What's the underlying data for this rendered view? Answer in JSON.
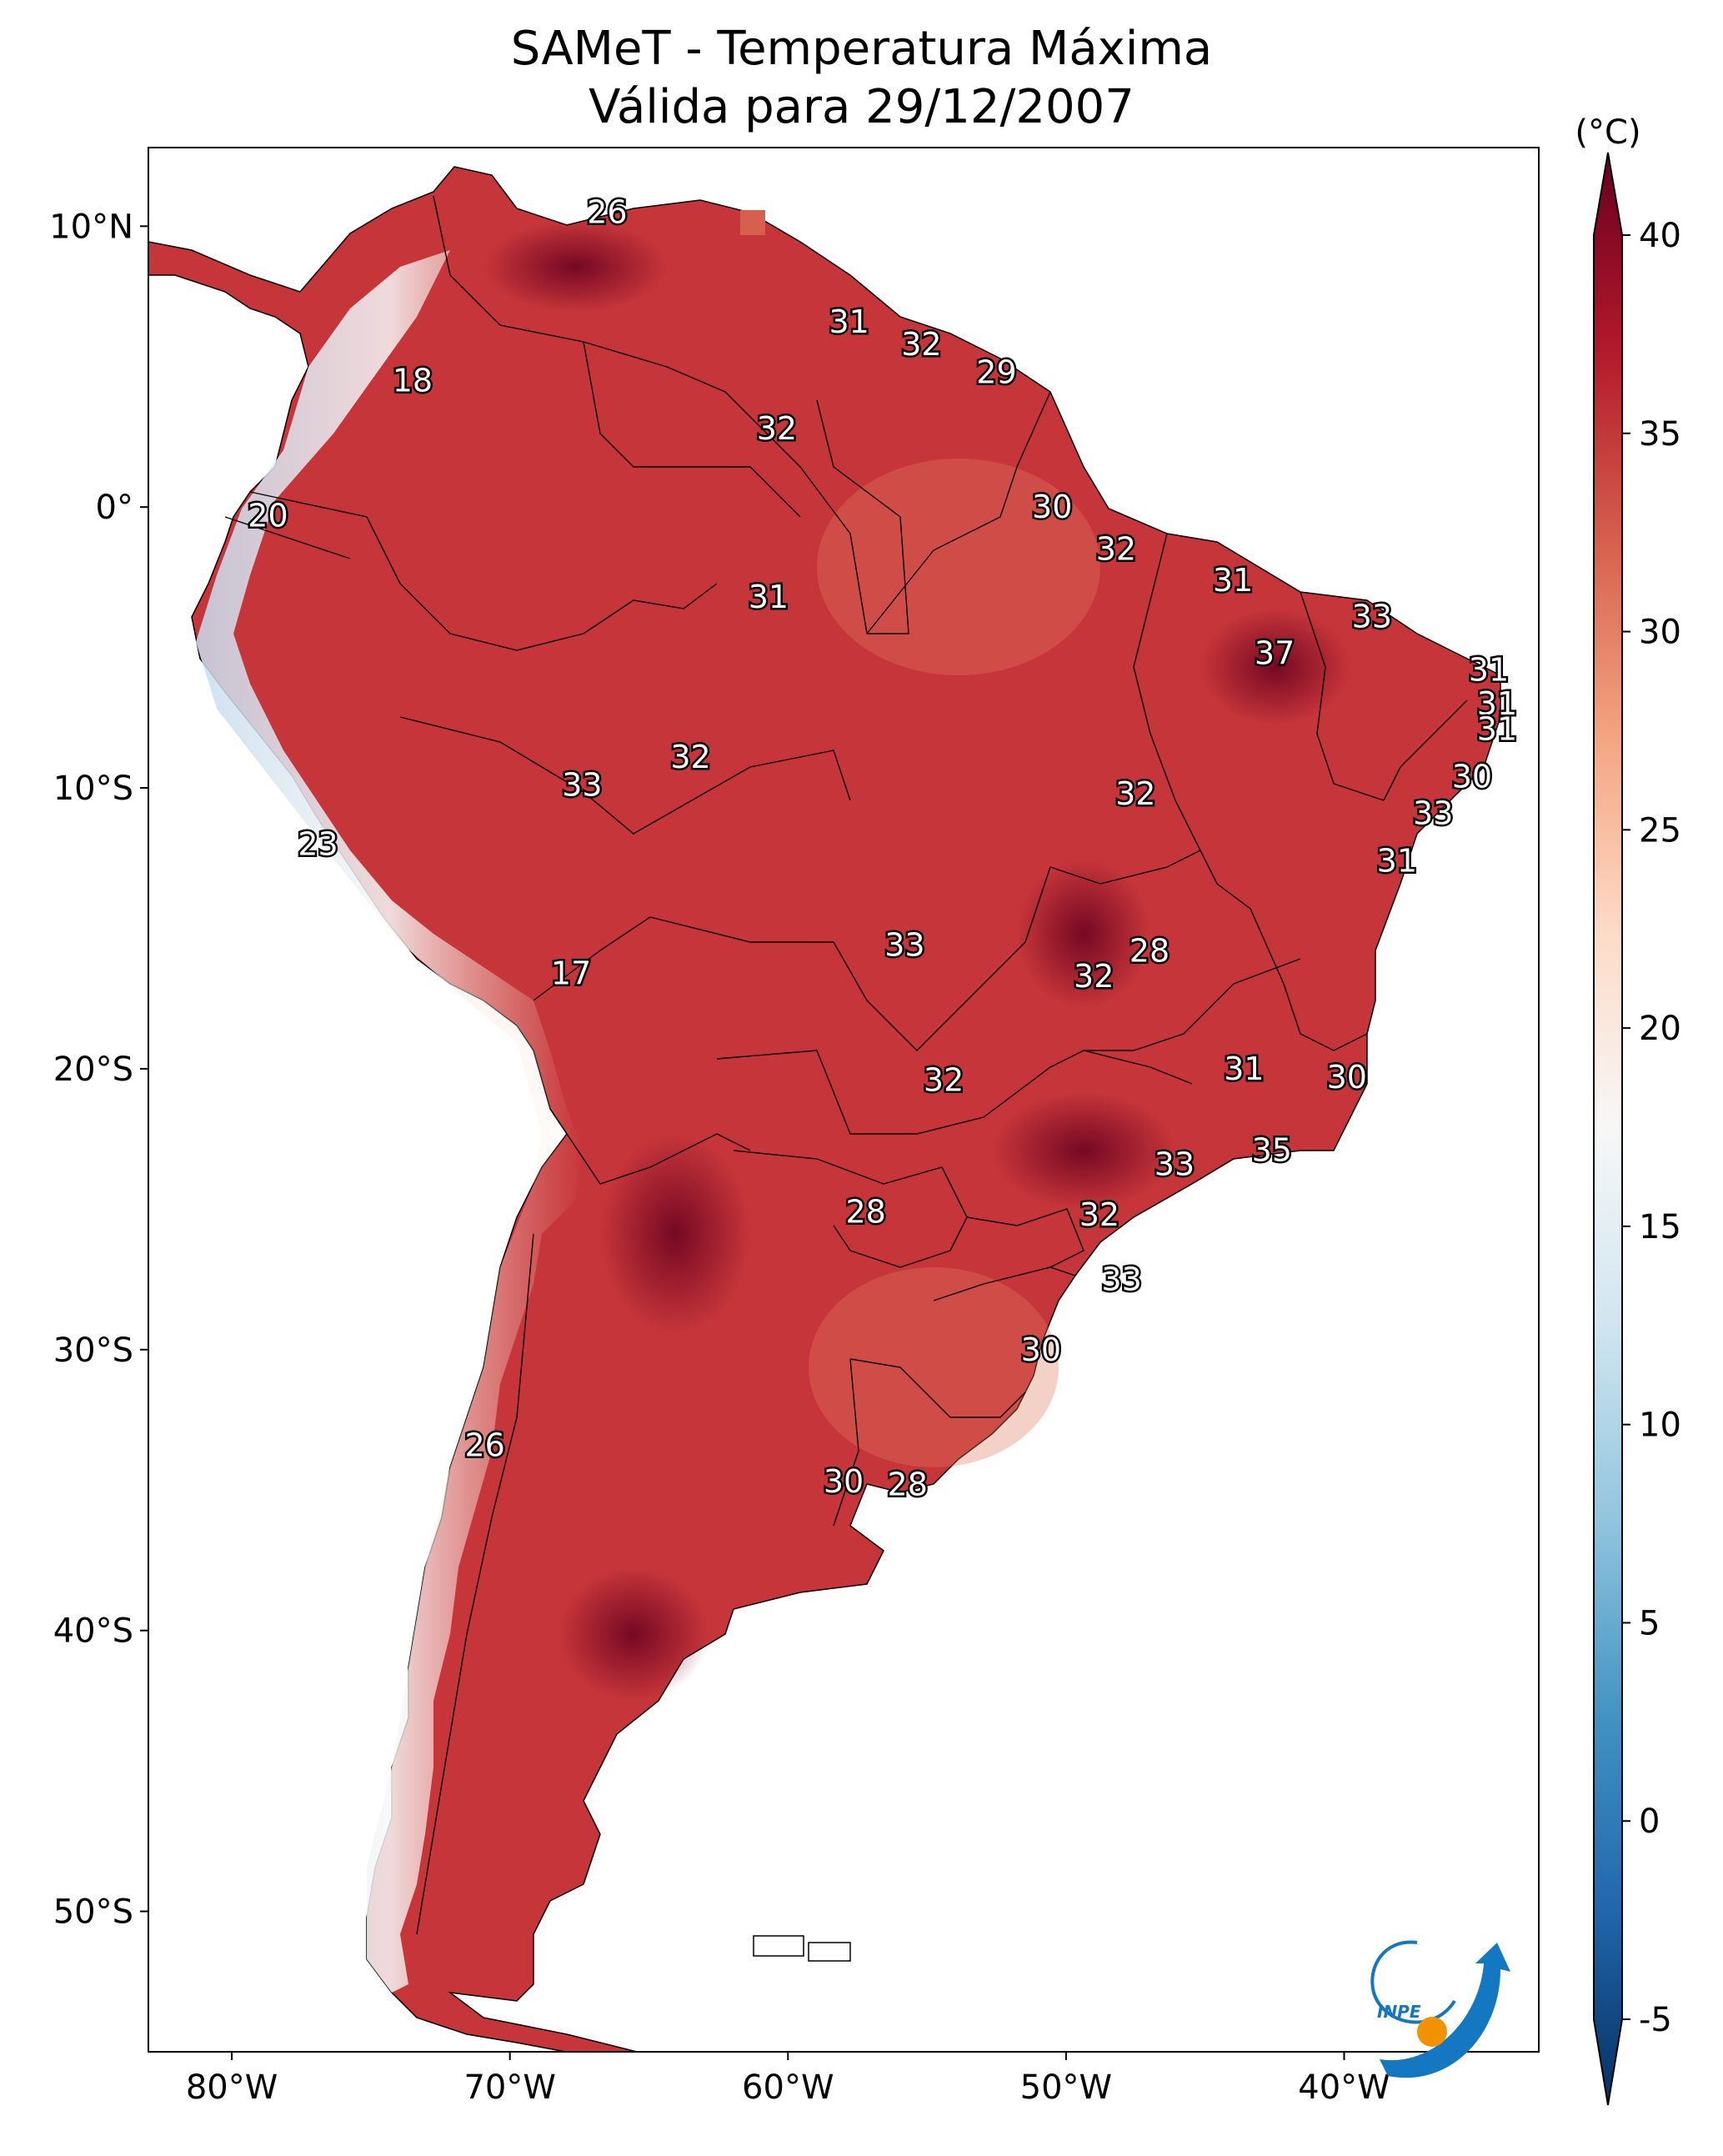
{
  "title": {
    "line1": "SAMeT - Temperatura Máxima",
    "line2": "Válida para 29/12/2007"
  },
  "map": {
    "lat_ticks": [
      "10°N",
      "0°",
      "10°S",
      "20°S",
      "30°S",
      "40°S",
      "50°S"
    ],
    "lon_ticks": [
      "80°W",
      "70°W",
      "60°W",
      "50°W",
      "40°W"
    ],
    "lat_values": [
      10,
      0,
      -10,
      -20,
      -30,
      -40,
      -50
    ],
    "lon_values": [
      -80,
      -70,
      -60,
      -50,
      -40
    ],
    "extent": {
      "lon": [
        -83,
        -33
      ],
      "lat": [
        -55,
        12.8
      ]
    },
    "contour_labels": [
      {
        "text": "26",
        "lon": -66.5,
        "lat": 10.5
      },
      {
        "text": "31",
        "lon": -57.8,
        "lat": 6.6
      },
      {
        "text": "32",
        "lon": -55.2,
        "lat": 5.8
      },
      {
        "text": "29",
        "lon": -52.5,
        "lat": 4.8
      },
      {
        "text": "18",
        "lon": -73.5,
        "lat": 4.5
      },
      {
        "text": "32",
        "lon": -60.4,
        "lat": 2.8
      },
      {
        "text": "30",
        "lon": -50.5,
        "lat": 0.0
      },
      {
        "text": "20",
        "lon": -78.7,
        "lat": -0.3
      },
      {
        "text": "32",
        "lon": -48.2,
        "lat": -1.5
      },
      {
        "text": "31",
        "lon": -44.0,
        "lat": -2.6
      },
      {
        "text": "31",
        "lon": -60.7,
        "lat": -3.2
      },
      {
        "text": "33",
        "lon": -39.0,
        "lat": -3.9
      },
      {
        "text": "37",
        "lon": -42.5,
        "lat": -5.2
      },
      {
        "text": "31",
        "lon": -34.8,
        "lat": -5.8
      },
      {
        "text": "31",
        "lon": -34.5,
        "lat": -7.0
      },
      {
        "text": "31",
        "lon": -34.5,
        "lat": -7.9
      },
      {
        "text": "32",
        "lon": -63.5,
        "lat": -8.9
      },
      {
        "text": "30",
        "lon": -35.4,
        "lat": -9.6
      },
      {
        "text": "33",
        "lon": -67.4,
        "lat": -9.9
      },
      {
        "text": "32",
        "lon": -47.5,
        "lat": -10.2
      },
      {
        "text": "33",
        "lon": -36.8,
        "lat": -10.9
      },
      {
        "text": "23",
        "lon": -76.9,
        "lat": -12.0
      },
      {
        "text": "31",
        "lon": -38.1,
        "lat": -12.6
      },
      {
        "text": "33",
        "lon": -55.8,
        "lat": -15.6
      },
      {
        "text": "28",
        "lon": -47.0,
        "lat": -15.8
      },
      {
        "text": "32",
        "lon": -49.0,
        "lat": -16.7
      },
      {
        "text": "17",
        "lon": -67.8,
        "lat": -16.6
      },
      {
        "text": "31",
        "lon": -43.6,
        "lat": -20.0
      },
      {
        "text": "32",
        "lon": -54.4,
        "lat": -20.4
      },
      {
        "text": "30",
        "lon": -39.9,
        "lat": -20.3
      },
      {
        "text": "35",
        "lon": -42.6,
        "lat": -22.9
      },
      {
        "text": "33",
        "lon": -46.1,
        "lat": -23.4
      },
      {
        "text": "28",
        "lon": -57.2,
        "lat": -25.1
      },
      {
        "text": "32",
        "lon": -48.8,
        "lat": -25.2
      },
      {
        "text": "33",
        "lon": -48.0,
        "lat": -27.5
      },
      {
        "text": "30",
        "lon": -50.9,
        "lat": -30.0
      },
      {
        "text": "26",
        "lon": -70.9,
        "lat": -33.4
      },
      {
        "text": "30",
        "lon": -58.0,
        "lat": -34.7
      },
      {
        "text": "28",
        "lon": -55.7,
        "lat": -34.8
      }
    ]
  },
  "colorbar": {
    "unit": "(°C)",
    "ticks": [
      "40",
      "35",
      "30",
      "25",
      "20",
      "15",
      "10",
      "5",
      "0",
      "-5"
    ],
    "tick_values": [
      40,
      35,
      30,
      25,
      20,
      15,
      10,
      5,
      0,
      -5
    ],
    "range": [
      -5,
      40
    ],
    "colors": [
      "#053061",
      "#2166ac",
      "#4393c3",
      "#92c5de",
      "#d1e5f0",
      "#f7f7f7",
      "#fddbc7",
      "#f4a582",
      "#d6604d",
      "#b2182b",
      "#67001f"
    ]
  },
  "logo": {
    "text": "INPE"
  }
}
